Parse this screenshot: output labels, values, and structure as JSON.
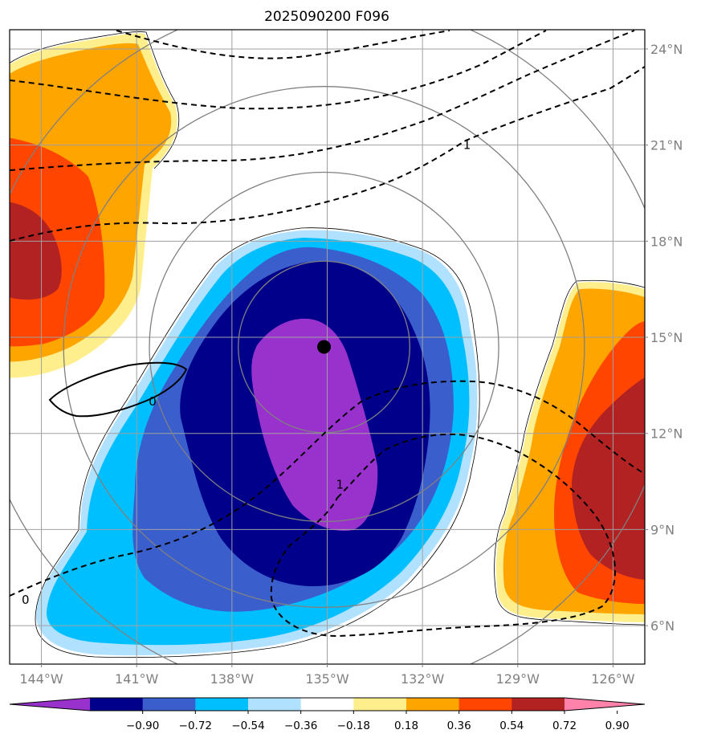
{
  "title": "2025090200 F096",
  "map": {
    "lon_range": [
      -145.0,
      -125.0
    ],
    "lat_range": [
      4.8,
      24.6
    ],
    "lon_ticks": [
      {
        "value": -144,
        "label": "144°W"
      },
      {
        "value": -141,
        "label": "141°W"
      },
      {
        "value": -138,
        "label": "138°W"
      },
      {
        "value": -135,
        "label": "135°W"
      },
      {
        "value": -132,
        "label": "132°W"
      },
      {
        "value": -129,
        "label": "129°W"
      },
      {
        "value": -126,
        "label": "126°W"
      }
    ],
    "lat_ticks": [
      {
        "value": 24,
        "label": "24°N"
      },
      {
        "value": 21,
        "label": "21°N"
      },
      {
        "value": 18,
        "label": "18°N"
      },
      {
        "value": 15,
        "label": "15°N"
      },
      {
        "value": 12,
        "label": "12°N"
      },
      {
        "value": 9,
        "label": "9°N"
      },
      {
        "value": 6,
        "label": "6°N"
      }
    ],
    "grid": true,
    "storm_center": {
      "lon": -135.1,
      "lat": 14.7
    },
    "range_rings_deg": [
      2.7,
      5.5,
      8.2,
      11.0
    ],
    "contour_labels": [
      {
        "text": "1",
        "lon": -130.6,
        "lat": 21.0
      },
      {
        "text": "0",
        "lon": -140.5,
        "lat": 13.0
      },
      {
        "text": "0",
        "lon": -144.5,
        "lat": 6.8
      },
      {
        "text": "1",
        "lon": -134.6,
        "lat": 10.4
      }
    ]
  },
  "colorbar": {
    "tick_labels": [
      "−0.90",
      "−0.72",
      "−0.54",
      "−0.36",
      "−0.18",
      "0.18",
      "0.36",
      "0.54",
      "0.72",
      "0.90"
    ],
    "colors": [
      "#9932cc",
      "#00008b",
      "#3a5fcd",
      "#00bfff",
      "#b0e2ff",
      "#ffffff",
      "#ffee8c",
      "#ffa500",
      "#ff4500",
      "#b22222",
      "#ff82ab"
    ]
  }
}
